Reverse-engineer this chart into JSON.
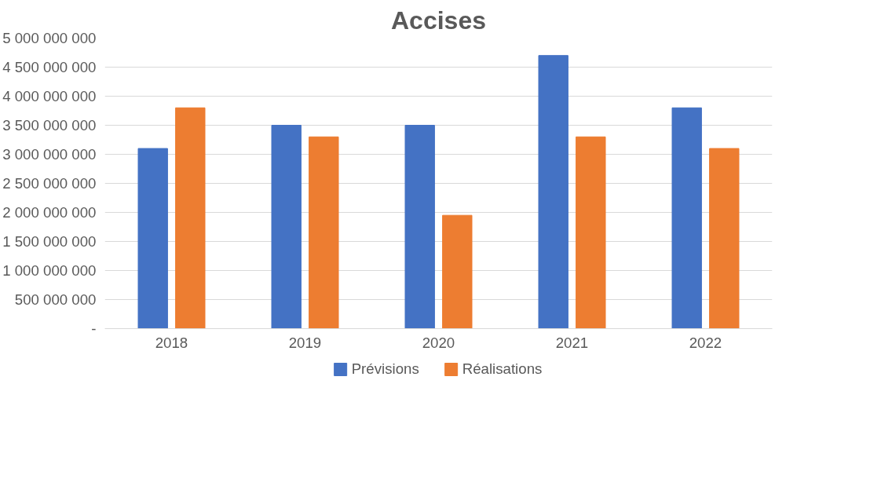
{
  "chart_data": {
    "type": "bar",
    "title": "Accises",
    "categories": [
      "2018",
      "2019",
      "2020",
      "2021",
      "2022"
    ],
    "series": [
      {
        "name": "Prévisions",
        "color": "#4472c4",
        "values": [
          3100000000,
          3500000000,
          3500000000,
          4700000000,
          3800000000
        ]
      },
      {
        "name": "Réalisations",
        "color": "#ed7d31",
        "values": [
          3800000000,
          3300000000,
          1950000000,
          3300000000,
          3100000000
        ]
      }
    ],
    "ylim": [
      0,
      5000000000
    ],
    "yticks": [
      {
        "value": 0,
        "label": "-"
      },
      {
        "value": 500000000,
        "label": "500 000 000"
      },
      {
        "value": 1000000000,
        "label": "1 000 000 000"
      },
      {
        "value": 1500000000,
        "label": "1 500 000 000"
      },
      {
        "value": 2000000000,
        "label": "2 000 000 000"
      },
      {
        "value": 2500000000,
        "label": "2 500 000 000"
      },
      {
        "value": 3000000000,
        "label": "3 000 000 000"
      },
      {
        "value": 3500000000,
        "label": "3 500 000 000"
      },
      {
        "value": 4000000000,
        "label": "4 000 000 000"
      },
      {
        "value": 4500000000,
        "label": "4 500 000 000"
      },
      {
        "value": 5000000000,
        "label": "5 000 000 000"
      }
    ],
    "grid": "y",
    "legend": "bottom"
  }
}
